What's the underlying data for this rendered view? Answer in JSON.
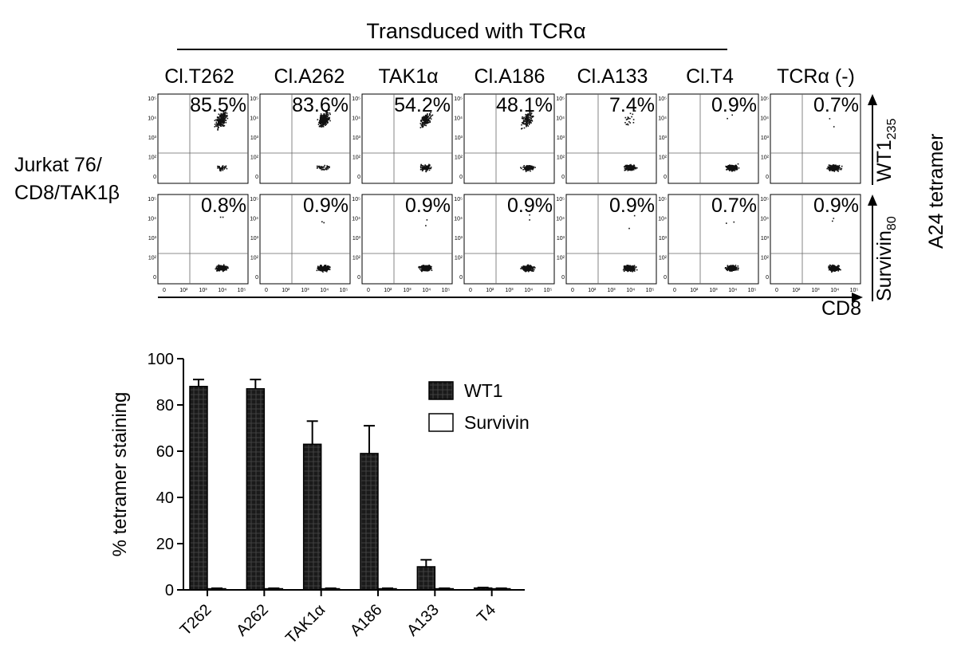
{
  "header": {
    "title": "Transduced with TCRα",
    "columns": [
      "Cl.T262",
      "Cl.A262",
      "TAK1α",
      "Cl.A186",
      "Cl.A133",
      "Cl.T4",
      "TCRα (-)"
    ]
  },
  "side_labels": {
    "cell_line_1": "Jurkat 76/",
    "cell_line_2": "CD8/TAK1β",
    "row1_main": "WT1",
    "row1_sub": "235",
    "row2_main": "Survivin",
    "row2_sub": "80",
    "tetramer": "A24 tetramer",
    "x_marker": "CD8"
  },
  "flow_axes": {
    "x_ticks": [
      "0",
      "10²",
      "10³",
      "10⁴",
      "10⁵"
    ],
    "y_ticks": [
      "10⁵",
      "10⁴",
      "10³",
      "10²",
      "0"
    ]
  },
  "colors": {
    "ink": "#000000",
    "wt1_bar": "#1a1a1a",
    "survivin_bar": "#ffffff",
    "gate_line": "#555555"
  },
  "chart_data": [
    {
      "type": "scatter",
      "title": "",
      "xlabel": "CD8",
      "ylabel": "A24 tetramer",
      "columns": [
        "Cl.T262",
        "Cl.A262",
        "TAK1α",
        "Cl.A186",
        "Cl.A133",
        "Cl.T4",
        "TCRα (-)"
      ],
      "rows": [
        {
          "name": "WT1235",
          "percent_labels": [
            "85.5%",
            "83.6%",
            "54.2%",
            "48.1%",
            "7.4%",
            "0.9%",
            "0.7%"
          ]
        },
        {
          "name": "Survivin80",
          "percent_labels": [
            "0.8%",
            "0.9%",
            "0.9%",
            "0.9%",
            "0.9%",
            "0.7%",
            "0.9%"
          ]
        }
      ]
    },
    {
      "type": "bar",
      "title": "",
      "categories": [
        "T262",
        "A262",
        "TAK1α",
        "A186",
        "A133",
        "T4"
      ],
      "series": [
        {
          "name": "WT1",
          "values": [
            88,
            87,
            63,
            59,
            10,
            0.8
          ],
          "errors": [
            3,
            4,
            10,
            12,
            3,
            0.2
          ]
        },
        {
          "name": "Survivin",
          "values": [
            0.5,
            0.5,
            0.5,
            0.5,
            0.5,
            0.5
          ],
          "errors": [
            0.2,
            0.2,
            0.2,
            0.2,
            0.2,
            0.2
          ]
        }
      ],
      "xlabel": "",
      "ylabel": "% tetramer staining",
      "ylim": [
        0,
        100
      ],
      "yticks": [
        0,
        20,
        40,
        60,
        80,
        100
      ],
      "legend": "top-right",
      "grid": false
    }
  ]
}
